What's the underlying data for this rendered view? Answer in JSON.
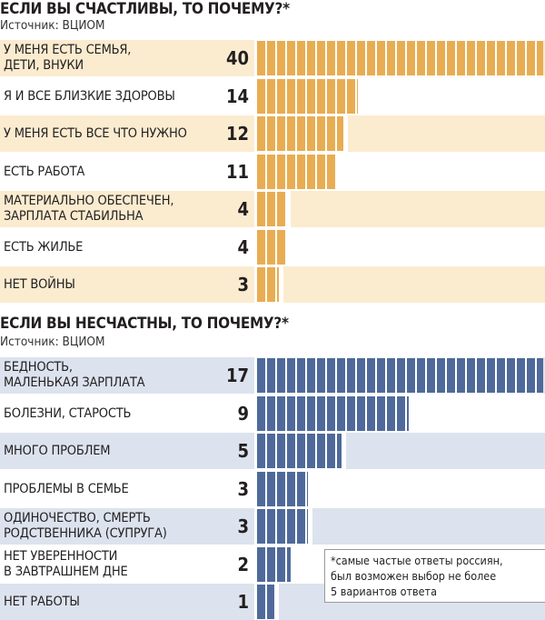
{
  "chart_data": [
    {
      "type": "bar",
      "orientation": "horizontal",
      "title": "ЕСЛИ ВЫ СЧАСТЛИВЫ, ТО ПОЧЕМУ?*",
      "source": "Источник: ВЦИОМ",
      "categories": [
        "У меня есть семья,\nдети, внуки",
        "Я и все близкие здоровы",
        "У меня есть все что нужно",
        "Есть работа",
        "Материально обеспечен,\nзарплата стабильна",
        "Есть жилье",
        "Нет войны"
      ],
      "values": [
        40,
        14,
        12,
        11,
        4,
        4,
        3
      ],
      "max": 40,
      "colors": {
        "bar": "#e8ad52",
        "stripe": "#fbecd0",
        "plain": "#ffffff"
      }
    },
    {
      "type": "bar",
      "orientation": "horizontal",
      "title": "ЕСЛИ ВЫ НЕСЧАСТНЫ, ТО ПОЧЕМУ?*",
      "source": "Источник: ВЦИОМ",
      "categories": [
        "Бедность,\nмаленькая зарплата",
        "Болезни, старость",
        "Много проблем",
        "Проблемы в семье",
        "Одиночество, смерть\nродственника (супруга)",
        "Нет уверенности\nв завтрашнем дне",
        "Нет работы"
      ],
      "values": [
        17,
        9,
        5,
        3,
        3,
        2,
        1
      ],
      "max": 17,
      "colors": {
        "bar": "#4f6a9a",
        "stripe": "#dce3ee",
        "plain": "#ffffff"
      }
    }
  ],
  "footnote": "*самые частые ответы россиян,\nбыл возможен выбор не более\n5 вариантов ответа"
}
